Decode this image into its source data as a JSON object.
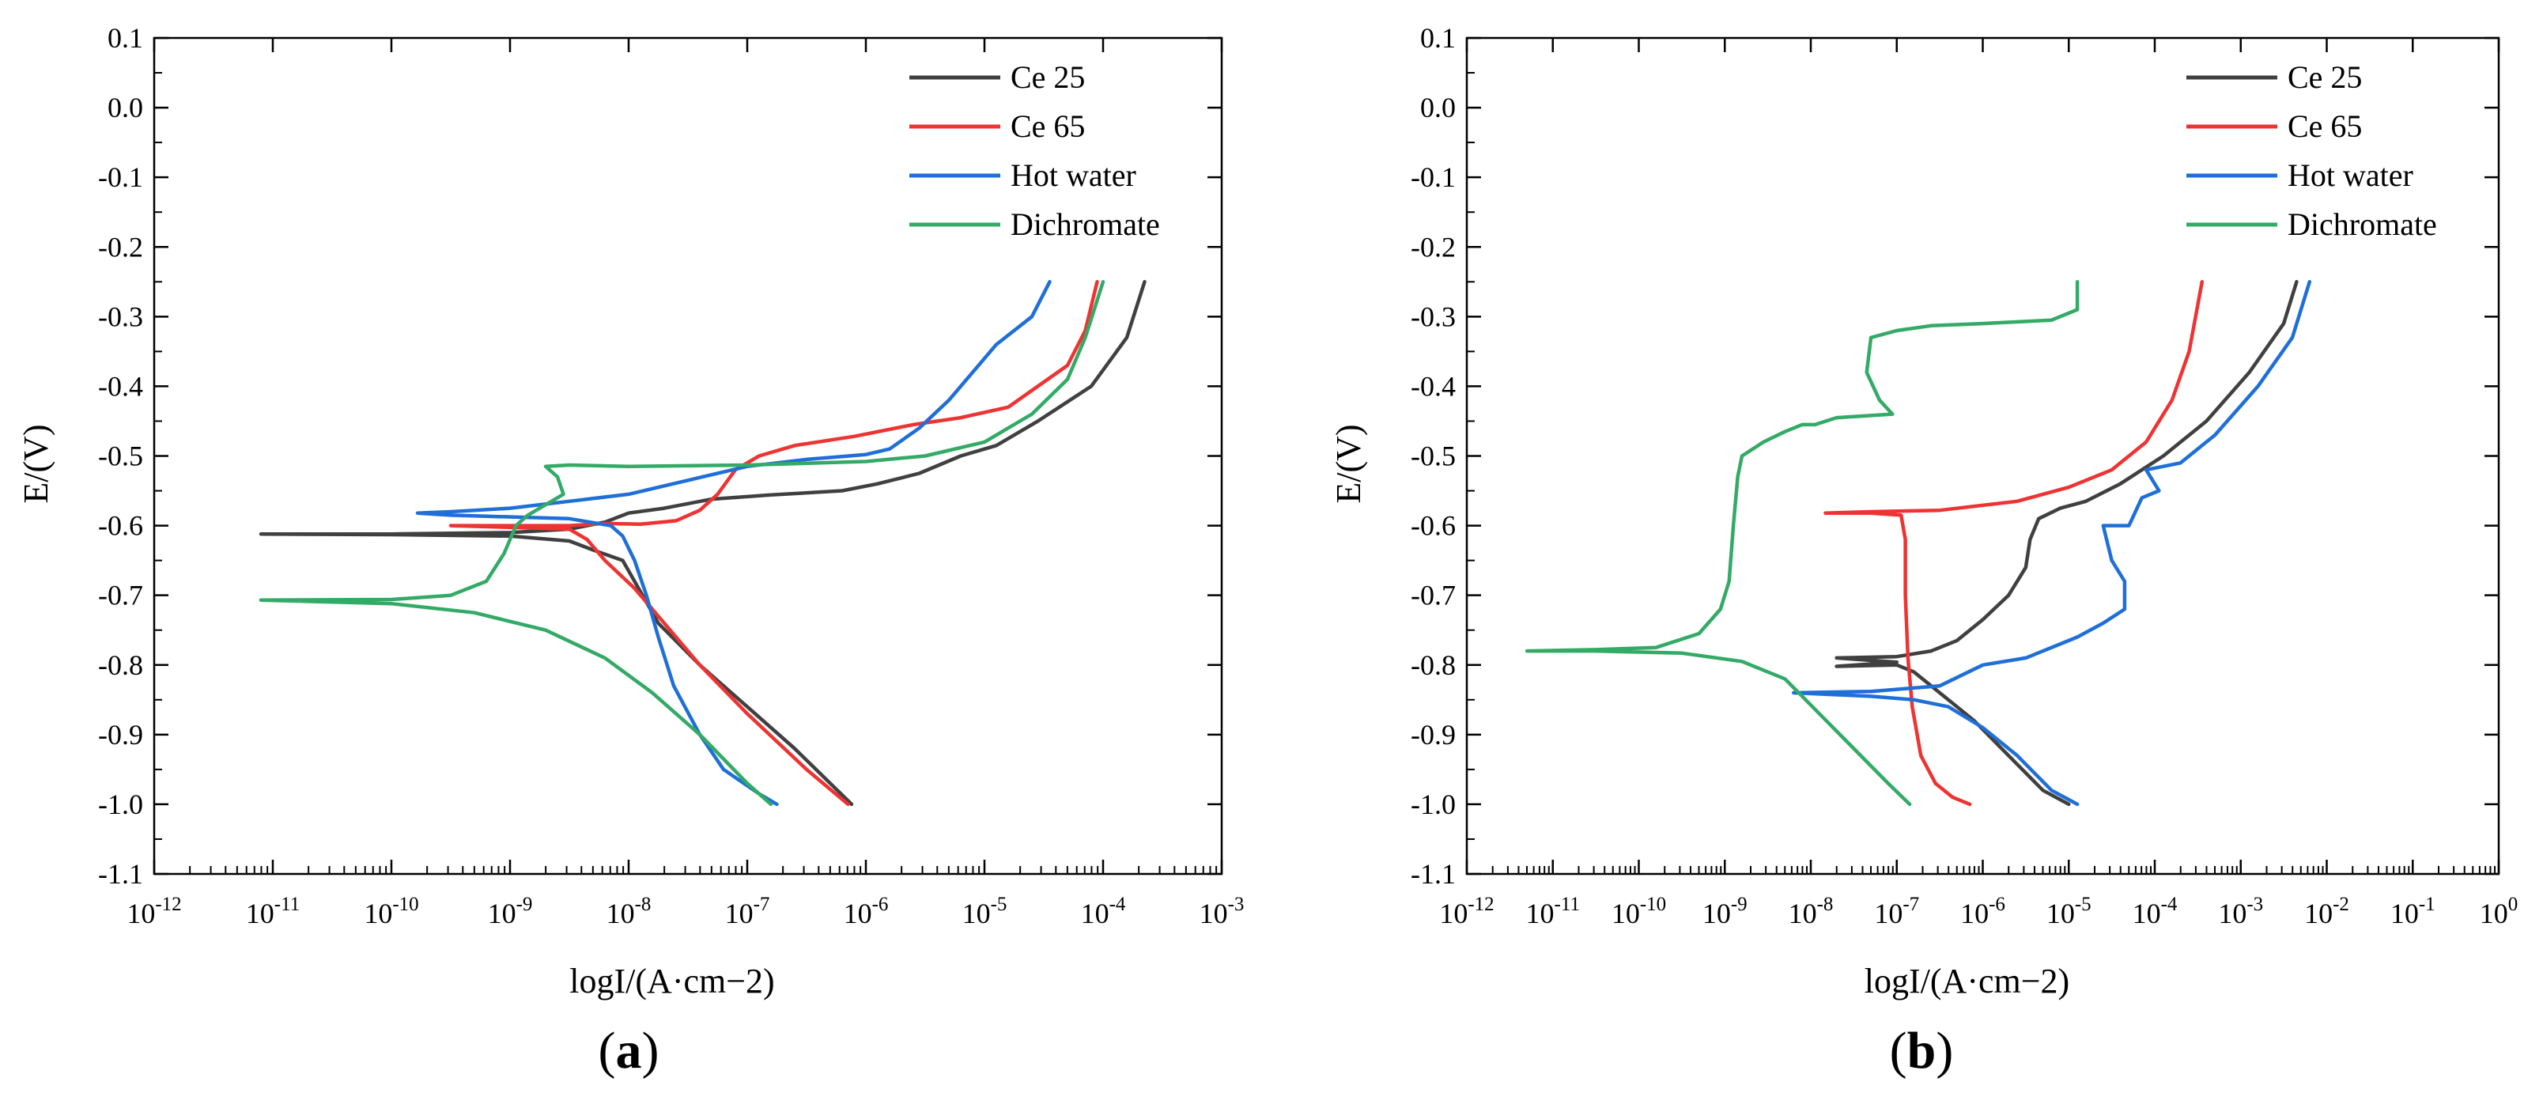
{
  "figure": {
    "panel_labels": [
      "a",
      "b"
    ]
  },
  "colors": {
    "ce25": "#404040",
    "ce65": "#ee3333",
    "hot_water": "#1f6fd8",
    "dichromate": "#33aa66",
    "axis": "#000000"
  },
  "chart_data": [
    {
      "type": "line",
      "panel": "a",
      "xlabel": "logI/(A·cm−2)",
      "ylabel": "E/(V)",
      "x_scale": "log",
      "xlim_exp": [
        -12,
        -3
      ],
      "x_tick_exponents": [
        -12,
        -11,
        -10,
        -9,
        -8,
        -7,
        -6,
        -5,
        -4,
        -3
      ],
      "ylim": [
        -1.1,
        0.1
      ],
      "y_ticks": [
        0.1,
        0.0,
        -0.1,
        -0.2,
        -0.3,
        -0.4,
        -0.5,
        -0.6,
        -0.7,
        -0.8,
        -0.9,
        -1.0,
        -1.1
      ],
      "y_tick_labels": [
        "0.1",
        "0.0",
        "-0.1",
        "-0.2",
        "-0.3",
        "-0.4",
        "-0.5",
        "-0.6",
        "-0.7",
        "-0.8",
        "-0.9",
        "-1.0",
        "-1.1"
      ],
      "legend_position": "top-right",
      "series": [
        {
          "name": "Ce 25",
          "color_key": "ce25",
          "points": [
            [
              -6.12,
              -1.0
            ],
            [
              -6.3,
              -0.97
            ],
            [
              -6.6,
              -0.92
            ],
            [
              -7.0,
              -0.86
            ],
            [
              -7.4,
              -0.8
            ],
            [
              -7.75,
              -0.74
            ],
            [
              -7.95,
              -0.68
            ],
            [
              -8.05,
              -0.65
            ],
            [
              -8.3,
              -0.635
            ],
            [
              -8.5,
              -0.622
            ],
            [
              -9.0,
              -0.615
            ],
            [
              -10.0,
              -0.613
            ],
            [
              -11.1,
              -0.612
            ],
            [
              -10.0,
              -0.612
            ],
            [
              -9.0,
              -0.61
            ],
            [
              -8.5,
              -0.605
            ],
            [
              -8.2,
              -0.595
            ],
            [
              -8.0,
              -0.582
            ],
            [
              -7.7,
              -0.575
            ],
            [
              -7.3,
              -0.562
            ],
            [
              -6.8,
              -0.556
            ],
            [
              -6.2,
              -0.55
            ],
            [
              -5.9,
              -0.54
            ],
            [
              -5.55,
              -0.525
            ],
            [
              -5.2,
              -0.5
            ],
            [
              -4.9,
              -0.485
            ],
            [
              -4.55,
              -0.45
            ],
            [
              -4.1,
              -0.4
            ],
            [
              -3.8,
              -0.33
            ],
            [
              -3.65,
              -0.25
            ]
          ]
        },
        {
          "name": "Ce 65",
          "color_key": "ce65",
          "points": [
            [
              -6.15,
              -1.0
            ],
            [
              -6.5,
              -0.95
            ],
            [
              -7.0,
              -0.87
            ],
            [
              -7.4,
              -0.8
            ],
            [
              -7.7,
              -0.74
            ],
            [
              -7.95,
              -0.69
            ],
            [
              -8.2,
              -0.65
            ],
            [
              -8.35,
              -0.62
            ],
            [
              -8.5,
              -0.605
            ],
            [
              -9.5,
              -0.6
            ],
            [
              -8.5,
              -0.6
            ],
            [
              -8.2,
              -0.597
            ],
            [
              -7.9,
              -0.598
            ],
            [
              -7.6,
              -0.593
            ],
            [
              -7.4,
              -0.578
            ],
            [
              -7.25,
              -0.555
            ],
            [
              -7.1,
              -0.52
            ],
            [
              -6.9,
              -0.5
            ],
            [
              -6.6,
              -0.485
            ],
            [
              -6.1,
              -0.472
            ],
            [
              -5.6,
              -0.455
            ],
            [
              -5.2,
              -0.445
            ],
            [
              -4.8,
              -0.43
            ],
            [
              -4.55,
              -0.4
            ],
            [
              -4.3,
              -0.37
            ],
            [
              -4.15,
              -0.32
            ],
            [
              -4.05,
              -0.25
            ]
          ]
        },
        {
          "name": "Hot water",
          "color_key": "hot_water",
          "points": [
            [
              -6.75,
              -1.0
            ],
            [
              -6.9,
              -0.985
            ],
            [
              -7.2,
              -0.95
            ],
            [
              -7.4,
              -0.9
            ],
            [
              -7.62,
              -0.83
            ],
            [
              -7.75,
              -0.76
            ],
            [
              -7.85,
              -0.7
            ],
            [
              -7.95,
              -0.65
            ],
            [
              -8.05,
              -0.615
            ],
            [
              -8.15,
              -0.6
            ],
            [
              -8.5,
              -0.59
            ],
            [
              -9.5,
              -0.585
            ],
            [
              -9.78,
              -0.582
            ],
            [
              -9.5,
              -0.58
            ],
            [
              -9.0,
              -0.575
            ],
            [
              -8.5,
              -0.565
            ],
            [
              -8.0,
              -0.555
            ],
            [
              -7.5,
              -0.535
            ],
            [
              -7.0,
              -0.515
            ],
            [
              -6.5,
              -0.505
            ],
            [
              -6.0,
              -0.498
            ],
            [
              -5.8,
              -0.49
            ],
            [
              -5.55,
              -0.46
            ],
            [
              -5.3,
              -0.42
            ],
            [
              -5.1,
              -0.38
            ],
            [
              -4.9,
              -0.34
            ],
            [
              -4.6,
              -0.3
            ],
            [
              -4.45,
              -0.25
            ]
          ]
        },
        {
          "name": "Dichromate",
          "color_key": "dichromate",
          "points": [
            [
              -6.8,
              -1.0
            ],
            [
              -7.0,
              -0.97
            ],
            [
              -7.4,
              -0.9
            ],
            [
              -7.8,
              -0.84
            ],
            [
              -8.2,
              -0.79
            ],
            [
              -8.7,
              -0.75
            ],
            [
              -9.3,
              -0.725
            ],
            [
              -10.0,
              -0.712
            ],
            [
              -11.1,
              -0.707
            ],
            [
              -10.0,
              -0.706
            ],
            [
              -9.5,
              -0.7
            ],
            [
              -9.2,
              -0.68
            ],
            [
              -9.05,
              -0.64
            ],
            [
              -8.95,
              -0.6
            ],
            [
              -8.85,
              -0.585
            ],
            [
              -8.7,
              -0.57
            ],
            [
              -8.55,
              -0.555
            ],
            [
              -8.6,
              -0.53
            ],
            [
              -8.7,
              -0.515
            ],
            [
              -8.5,
              -0.513
            ],
            [
              -8.0,
              -0.515
            ],
            [
              -7.0,
              -0.513
            ],
            [
              -6.0,
              -0.508
            ],
            [
              -5.5,
              -0.5
            ],
            [
              -5.0,
              -0.48
            ],
            [
              -4.6,
              -0.44
            ],
            [
              -4.3,
              -0.39
            ],
            [
              -4.15,
              -0.33
            ],
            [
              -4.0,
              -0.25
            ]
          ]
        }
      ]
    },
    {
      "type": "line",
      "panel": "b",
      "xlabel": "logI/(A·cm−2)",
      "ylabel": "E/(V)",
      "x_scale": "log",
      "xlim_exp": [
        -12,
        0
      ],
      "x_tick_exponents": [
        -12,
        -11,
        -10,
        -9,
        -8,
        -7,
        -6,
        -5,
        -4,
        -3,
        -2,
        -1,
        0
      ],
      "ylim": [
        -1.1,
        0.1
      ],
      "y_ticks": [
        0.1,
        0.0,
        -0.1,
        -0.2,
        -0.3,
        -0.4,
        -0.5,
        -0.6,
        -0.7,
        -0.8,
        -0.9,
        -1.0,
        -1.1
      ],
      "y_tick_labels": [
        "0.1",
        "0.0",
        "-0.1",
        "-0.2",
        "-0.3",
        "-0.4",
        "-0.5",
        "-0.6",
        "-0.7",
        "-0.8",
        "-0.9",
        "-1.0",
        "-1.1"
      ],
      "legend_position": "top-right",
      "series": [
        {
          "name": "Ce 25",
          "color_key": "ce25",
          "points": [
            [
              -5.0,
              -1.0
            ],
            [
              -5.3,
              -0.98
            ],
            [
              -5.7,
              -0.93
            ],
            [
              -6.1,
              -0.88
            ],
            [
              -6.5,
              -0.84
            ],
            [
              -6.8,
              -0.81
            ],
            [
              -7.0,
              -0.8
            ],
            [
              -7.7,
              -0.802
            ],
            [
              -7.0,
              -0.796
            ],
            [
              -7.7,
              -0.79
            ],
            [
              -7.0,
              -0.788
            ],
            [
              -6.6,
              -0.78
            ],
            [
              -6.3,
              -0.765
            ],
            [
              -6.0,
              -0.735
            ],
            [
              -5.7,
              -0.7
            ],
            [
              -5.5,
              -0.66
            ],
            [
              -5.45,
              -0.62
            ],
            [
              -5.35,
              -0.59
            ],
            [
              -5.1,
              -0.575
            ],
            [
              -4.8,
              -0.565
            ],
            [
              -4.4,
              -0.54
            ],
            [
              -3.9,
              -0.5
            ],
            [
              -3.4,
              -0.45
            ],
            [
              -2.9,
              -0.38
            ],
            [
              -2.5,
              -0.31
            ],
            [
              -2.35,
              -0.25
            ]
          ]
        },
        {
          "name": "Ce 65",
          "color_key": "ce65",
          "points": [
            [
              -6.15,
              -1.0
            ],
            [
              -6.35,
              -0.99
            ],
            [
              -6.55,
              -0.97
            ],
            [
              -6.72,
              -0.93
            ],
            [
              -6.82,
              -0.86
            ],
            [
              -6.87,
              -0.79
            ],
            [
              -6.9,
              -0.7
            ],
            [
              -6.9,
              -0.62
            ],
            [
              -6.95,
              -0.585
            ],
            [
              -7.3,
              -0.582
            ],
            [
              -7.83,
              -0.582
            ],
            [
              -7.3,
              -0.58
            ],
            [
              -6.5,
              -0.578
            ],
            [
              -5.6,
              -0.565
            ],
            [
              -5.0,
              -0.545
            ],
            [
              -4.5,
              -0.52
            ],
            [
              -4.1,
              -0.48
            ],
            [
              -3.8,
              -0.42
            ],
            [
              -3.6,
              -0.35
            ],
            [
              -3.45,
              -0.25
            ]
          ]
        },
        {
          "name": "Hot water",
          "color_key": "hot_water",
          "points": [
            [
              -4.9,
              -1.0
            ],
            [
              -5.2,
              -0.98
            ],
            [
              -5.6,
              -0.93
            ],
            [
              -6.0,
              -0.89
            ],
            [
              -6.4,
              -0.86
            ],
            [
              -6.8,
              -0.85
            ],
            [
              -7.3,
              -0.845
            ],
            [
              -8.2,
              -0.84
            ],
            [
              -7.3,
              -0.838
            ],
            [
              -6.5,
              -0.83
            ],
            [
              -6.0,
              -0.8
            ],
            [
              -5.5,
              -0.79
            ],
            [
              -4.9,
              -0.76
            ],
            [
              -4.6,
              -0.74
            ],
            [
              -4.35,
              -0.72
            ],
            [
              -4.35,
              -0.68
            ],
            [
              -4.5,
              -0.65
            ],
            [
              -4.6,
              -0.6
            ],
            [
              -4.3,
              -0.6
            ],
            [
              -4.15,
              -0.56
            ],
            [
              -3.95,
              -0.55
            ],
            [
              -4.1,
              -0.52
            ],
            [
              -3.7,
              -0.51
            ],
            [
              -3.3,
              -0.47
            ],
            [
              -2.8,
              -0.4
            ],
            [
              -2.4,
              -0.33
            ],
            [
              -2.2,
              -0.25
            ]
          ]
        },
        {
          "name": "Dichromate",
          "color_key": "dichromate",
          "points": [
            [
              -6.85,
              -1.0
            ],
            [
              -7.1,
              -0.97
            ],
            [
              -7.5,
              -0.92
            ],
            [
              -7.9,
              -0.87
            ],
            [
              -8.3,
              -0.82
            ],
            [
              -8.8,
              -0.795
            ],
            [
              -9.5,
              -0.783
            ],
            [
              -10.5,
              -0.78
            ],
            [
              -11.3,
              -0.78
            ],
            [
              -10.5,
              -0.778
            ],
            [
              -9.8,
              -0.775
            ],
            [
              -9.3,
              -0.755
            ],
            [
              -9.05,
              -0.72
            ],
            [
              -8.95,
              -0.68
            ],
            [
              -8.9,
              -0.6
            ],
            [
              -8.85,
              -0.53
            ],
            [
              -8.8,
              -0.5
            ],
            [
              -8.55,
              -0.48
            ],
            [
              -8.3,
              -0.465
            ],
            [
              -8.1,
              -0.455
            ],
            [
              -7.95,
              -0.455
            ],
            [
              -7.7,
              -0.445
            ],
            [
              -7.05,
              -0.44
            ],
            [
              -7.2,
              -0.42
            ],
            [
              -7.35,
              -0.38
            ],
            [
              -7.3,
              -0.33
            ],
            [
              -7.0,
              -0.32
            ],
            [
              -6.6,
              -0.313
            ],
            [
              -6.0,
              -0.31
            ],
            [
              -5.2,
              -0.305
            ],
            [
              -4.9,
              -0.29
            ],
            [
              -4.9,
              -0.25
            ]
          ]
        }
      ]
    }
  ]
}
